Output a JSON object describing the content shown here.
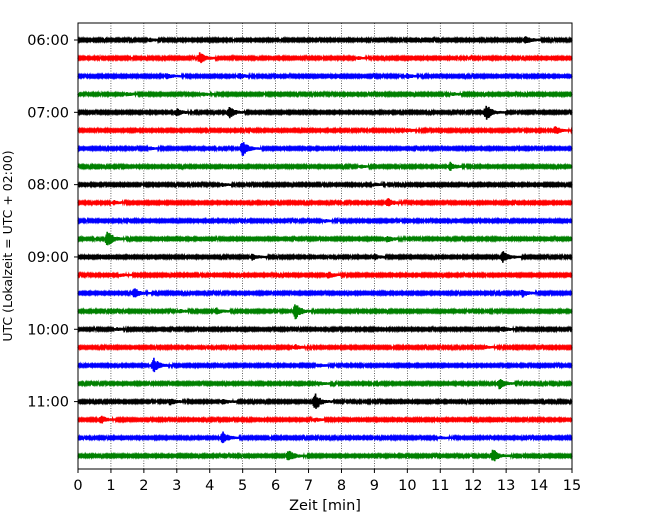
{
  "chart_data": {
    "type": "line",
    "title": "",
    "xlabel": "Zeit  [min]",
    "ylabel": "UTC (Lokalzeit = UTC + 02:00)",
    "xlim": [
      0,
      15
    ],
    "x_ticks": [
      0,
      1,
      2,
      3,
      4,
      5,
      6,
      7,
      8,
      9,
      10,
      11,
      12,
      13,
      14,
      15
    ],
    "x_grid": true,
    "y_tick_labels": [
      "06:00",
      "07:00",
      "08:00",
      "09:00",
      "10:00",
      "11:00"
    ],
    "trace_minutes": 15,
    "colors": [
      "#000000",
      "#ff0000",
      "#0000ff",
      "#008000"
    ],
    "traces": [
      {
        "start": "06:00",
        "events": [
          {
            "t": 13.6,
            "amp": 0.75
          },
          {
            "t": 2.2,
            "amp": 0.25
          }
        ]
      },
      {
        "start": "06:15",
        "events": [
          {
            "t": 3.7,
            "amp": 0.9
          },
          {
            "t": 8.5,
            "amp": 0.2
          }
        ]
      },
      {
        "start": "06:30",
        "events": [
          {
            "t": 2.7,
            "amp": 0.5
          },
          {
            "t": 4.9,
            "amp": 0.45
          },
          {
            "t": 10.0,
            "amp": 0.4
          }
        ]
      },
      {
        "start": "06:45",
        "events": [
          {
            "t": 1.5,
            "amp": 0.3
          },
          {
            "t": 3.8,
            "amp": 0.25
          },
          {
            "t": 11.4,
            "amp": 0.25
          }
        ]
      },
      {
        "start": "07:00",
        "events": [
          {
            "t": 3.0,
            "amp": 0.6
          },
          {
            "t": 4.6,
            "amp": 0.95
          },
          {
            "t": 12.4,
            "amp": 1.4
          }
        ]
      },
      {
        "start": "07:15",
        "events": [
          {
            "t": 14.5,
            "amp": 0.7
          },
          {
            "t": 10.0,
            "amp": 0.3
          }
        ]
      },
      {
        "start": "07:30",
        "events": [
          {
            "t": 5.0,
            "amp": 1.2
          },
          {
            "t": 2.2,
            "amp": 0.2
          }
        ]
      },
      {
        "start": "07:45",
        "events": [
          {
            "t": 11.3,
            "amp": 0.7
          },
          {
            "t": 8.6,
            "amp": 0.2
          }
        ]
      },
      {
        "start": "08:00",
        "events": [
          {
            "t": 4.4,
            "amp": 0.25
          },
          {
            "t": 9.0,
            "amp": 0.25
          }
        ]
      },
      {
        "start": "08:15",
        "events": [
          {
            "t": 9.4,
            "amp": 0.75
          },
          {
            "t": 1.1,
            "amp": 0.3
          }
        ]
      },
      {
        "start": "08:30",
        "events": [
          {
            "t": 7.5,
            "amp": 0.2
          }
        ]
      },
      {
        "start": "08:45",
        "events": [
          {
            "t": 0.9,
            "amp": 1.3
          },
          {
            "t": 9.4,
            "amp": 0.55
          }
        ]
      },
      {
        "start": "09:00",
        "events": [
          {
            "t": 5.3,
            "amp": 0.55
          },
          {
            "t": 9.0,
            "amp": 0.5
          },
          {
            "t": 12.9,
            "amp": 1.0
          }
        ]
      },
      {
        "start": "09:15",
        "events": [
          {
            "t": 7.6,
            "amp": 0.55
          },
          {
            "t": 1.3,
            "amp": 0.2
          }
        ]
      },
      {
        "start": "09:30",
        "events": [
          {
            "t": 1.7,
            "amp": 0.85
          },
          {
            "t": 13.5,
            "amp": 0.6
          }
        ]
      },
      {
        "start": "09:45",
        "events": [
          {
            "t": 4.2,
            "amp": 0.5
          },
          {
            "t": 6.6,
            "amp": 1.3
          },
          {
            "t": 3.1,
            "amp": 0.25
          }
        ]
      },
      {
        "start": "10:00",
        "events": [
          {
            "t": 12.9,
            "amp": 0.45
          },
          {
            "t": 1.2,
            "amp": 0.2
          }
        ]
      },
      {
        "start": "10:15",
        "events": [
          {
            "t": 6.6,
            "amp": 0.4
          },
          {
            "t": 12.4,
            "amp": 0.2
          }
        ]
      },
      {
        "start": "10:30",
        "events": [
          {
            "t": 2.3,
            "amp": 1.2
          },
          {
            "t": 7.3,
            "amp": 0.25
          }
        ]
      },
      {
        "start": "10:45",
        "events": [
          {
            "t": 7.3,
            "amp": 0.35
          },
          {
            "t": 12.8,
            "amp": 0.9
          }
        ]
      },
      {
        "start": "11:00",
        "events": [
          {
            "t": 2.8,
            "amp": 0.55
          },
          {
            "t": 4.4,
            "amp": 0.4
          },
          {
            "t": 7.2,
            "amp": 1.4
          }
        ]
      },
      {
        "start": "11:15",
        "events": [
          {
            "t": 0.7,
            "amp": 0.65
          },
          {
            "t": 7.2,
            "amp": 0.3
          }
        ]
      },
      {
        "start": "11:30",
        "events": [
          {
            "t": 4.4,
            "amp": 1.0
          },
          {
            "t": 11.0,
            "amp": 0.2
          }
        ]
      },
      {
        "start": "11:45",
        "events": [
          {
            "t": 6.4,
            "amp": 1.0
          },
          {
            "t": 12.6,
            "amp": 1.2
          }
        ]
      }
    ]
  }
}
